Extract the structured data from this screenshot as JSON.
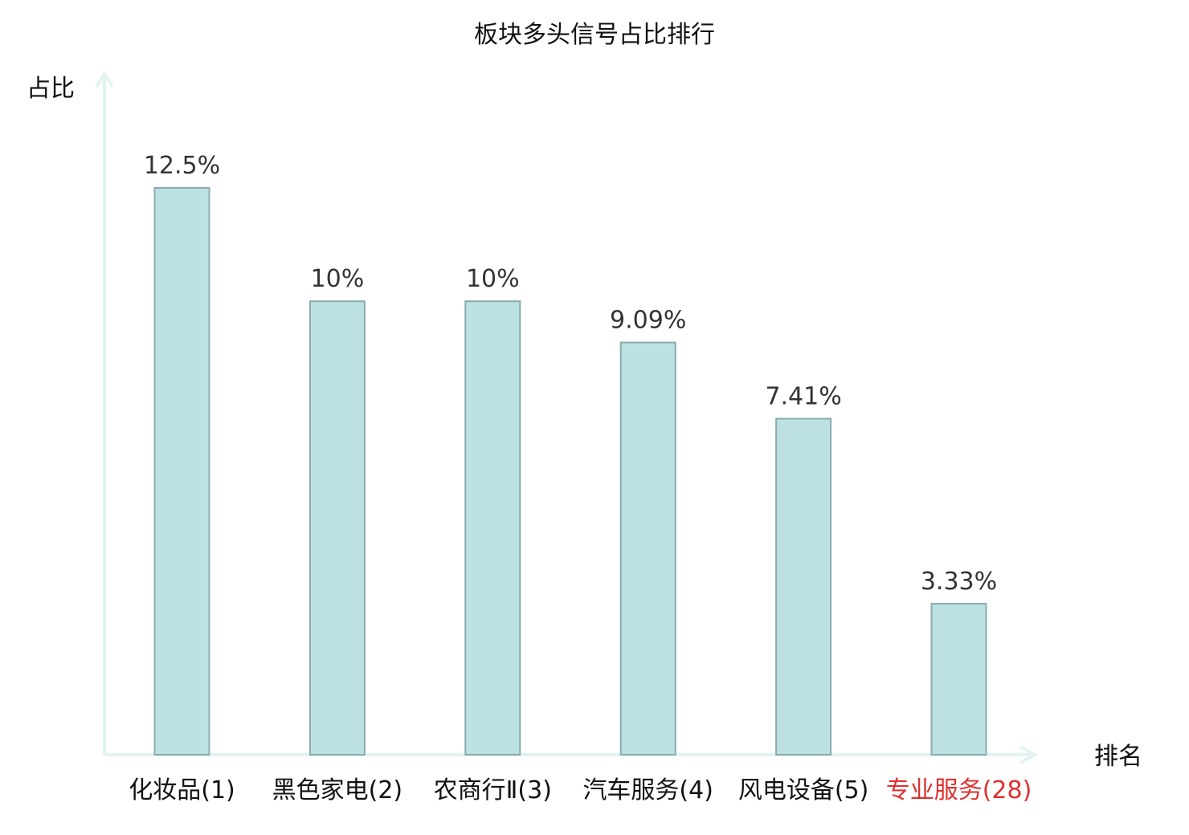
{
  "chart_data": {
    "type": "bar",
    "title": "板块多头信号占比排行",
    "xlabel": "排名",
    "ylabel": "占比",
    "categories": [
      "化妆品(1)",
      "黑色家电(2)",
      "农商行Ⅱ(3)",
      "汽车服务(4)",
      "风电设备(5)",
      "专业服务(28)"
    ],
    "values": [
      12.5,
      10,
      10,
      9.09,
      7.41,
      3.33
    ],
    "value_labels": [
      "12.5%",
      "10%",
      "10%",
      "9.09%",
      "7.41%",
      "3.33%"
    ],
    "highlight_index": 5,
    "ylim": [
      0,
      15
    ],
    "grid": false,
    "legend": "none",
    "colors": {
      "bar_fill": "#bde0e2",
      "bar_stroke": "#8aabad",
      "axis": "#e2f3f1",
      "highlight_text": "#e03030"
    }
  }
}
